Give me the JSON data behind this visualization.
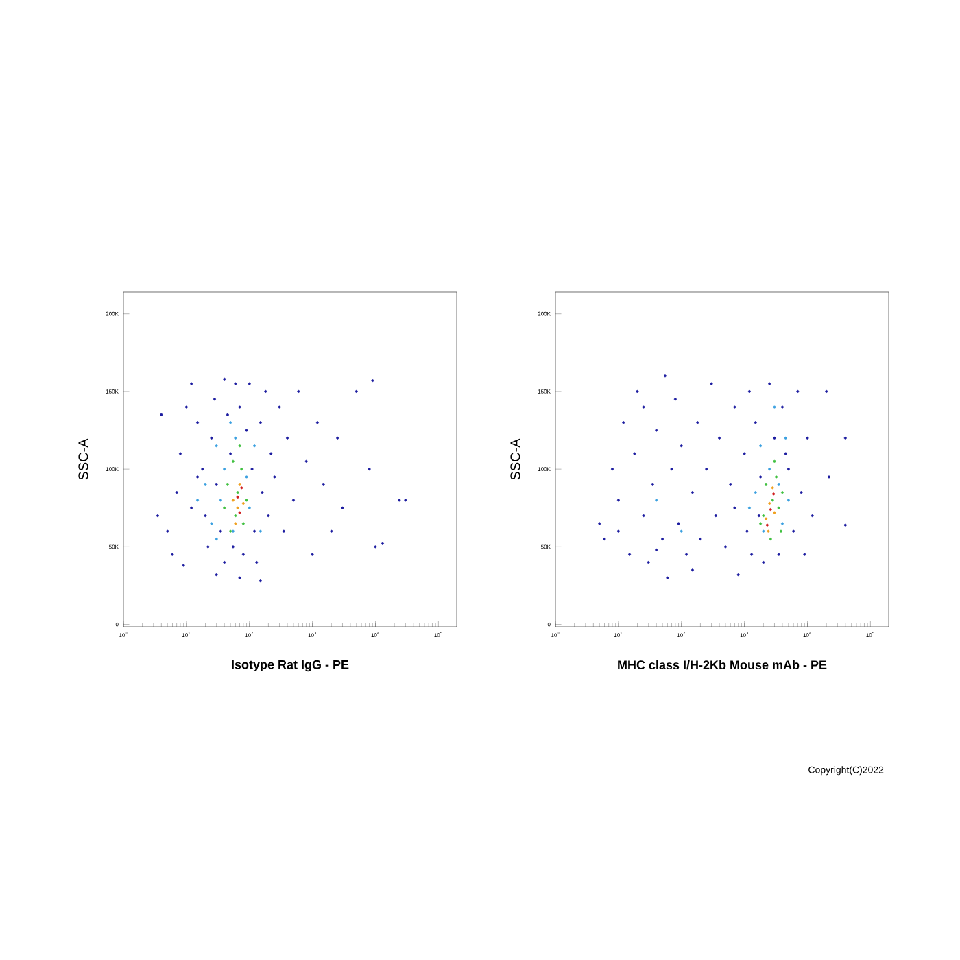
{
  "chart_data": [
    {
      "type": "scatter",
      "xlabel": "Isotype Rat IgG - PE",
      "ylabel": "SSC-A",
      "log": "x",
      "marker": "circle",
      "grid": false,
      "xlim": [
        1,
        195000
      ],
      "ylim": [
        -1500,
        214000
      ],
      "xticks": [
        {
          "value": 1,
          "label": "10$^{0}$"
        },
        {
          "value": 10,
          "label": "10$^{1}$"
        },
        {
          "value": 100,
          "label": "10$^{2}$"
        },
        {
          "value": 1000,
          "label": "10$^{3}$"
        },
        {
          "value": 10000,
          "label": "10$^{4}$"
        },
        {
          "value": 100000,
          "label": "10$^{5}$"
        }
      ],
      "yticks": [
        0,
        {
          "value": 50000,
          "label": "50K"
        },
        {
          "value": 100000,
          "label": "100K"
        },
        {
          "value": 150000,
          "label": "150K"
        },
        {
          "value": 200000,
          "label": "200K"
        }
      ],
      "series": [
        {
          "color": "#1c1ca0",
          "x": [
            5,
            7,
            8,
            10,
            12,
            15,
            18,
            20,
            22,
            25,
            28,
            30,
            35,
            40,
            40,
            45,
            50,
            55,
            60,
            70,
            80,
            90,
            100,
            110,
            120,
            130,
            150,
            160,
            180,
            200,
            220,
            250,
            300,
            350,
            400,
            500,
            600,
            800,
            1000,
            1200,
            1500,
            2000,
            2500,
            3000,
            5000,
            8000,
            10000,
            13000,
            9000,
            24000,
            30000,
            4,
            6,
            9,
            30,
            70,
            150,
            3.5,
            12,
            15
          ],
          "values": [
            60000,
            85000,
            110000,
            140000,
            155000,
            130000,
            100000,
            70000,
            50000,
            120000,
            145000,
            90000,
            60000,
            158000,
            40000,
            135000,
            110000,
            50000,
            155000,
            140000,
            45000,
            125000,
            155000,
            100000,
            60000,
            40000,
            130000,
            85000,
            150000,
            70000,
            110000,
            95000,
            140000,
            60000,
            120000,
            80000,
            150000,
            105000,
            45000,
            130000,
            90000,
            60000,
            120000,
            75000,
            150000,
            100000,
            50000,
            52000,
            157000,
            80000,
            80000,
            135000,
            45000,
            38000,
            32000,
            30000,
            28000,
            70000,
            75000,
            95000
          ]
        },
        {
          "color": "#3aa0e0",
          "x": [
            20,
            25,
            30,
            35,
            40,
            50,
            55,
            60,
            90,
            100,
            120,
            150,
            30,
            15
          ],
          "values": [
            90000,
            65000,
            115000,
            80000,
            100000,
            130000,
            60000,
            120000,
            95000,
            75000,
            115000,
            60000,
            55000,
            80000
          ]
        },
        {
          "color": "#40c040",
          "x": [
            45,
            55,
            60,
            65,
            75,
            80,
            70,
            40,
            90,
            50
          ],
          "values": [
            90000,
            105000,
            70000,
            85000,
            100000,
            65000,
            115000,
            75000,
            80000,
            60000
          ]
        },
        {
          "color": "#f0a020",
          "x": [
            55,
            65,
            70,
            60,
            80
          ],
          "values": [
            80000,
            75000,
            90000,
            65000,
            78000
          ]
        },
        {
          "color": "#d02020",
          "x": [
            65,
            70,
            75
          ],
          "values": [
            82000,
            72000,
            88000
          ]
        }
      ]
    },
    {
      "type": "scatter",
      "xlabel": "MHC class I/H-2Kb Mouse mAb - PE",
      "ylabel": "SSC-A",
      "log": "x",
      "marker": "circle",
      "grid": false,
      "xlim": [
        1,
        195000
      ],
      "ylim": [
        -1500,
        214000
      ],
      "xticks": [
        {
          "value": 1,
          "label": "10$^{0}$"
        },
        {
          "value": 10,
          "label": "10$^{1}$"
        },
        {
          "value": 100,
          "label": "10$^{2}$"
        },
        {
          "value": 1000,
          "label": "10$^{3}$"
        },
        {
          "value": 10000,
          "label": "10$^{4}$"
        },
        {
          "value": 100000,
          "label": "10$^{5}$"
        }
      ],
      "yticks": [
        0,
        {
          "value": 50000,
          "label": "50K"
        },
        {
          "value": 100000,
          "label": "100K"
        },
        {
          "value": 150000,
          "label": "150K"
        },
        {
          "value": 200000,
          "label": "200K"
        }
      ],
      "annotations": [
        "Copyright(C)2022"
      ],
      "series": [
        {
          "color": "#1c1ca0",
          "x": [
            5,
            6,
            8,
            10,
            12,
            15,
            18,
            20,
            25,
            30,
            35,
            40,
            50,
            55,
            60,
            70,
            80,
            90,
            100,
            120,
            150,
            180,
            200,
            250,
            300,
            350,
            400,
            500,
            600,
            700,
            800,
            1000,
            1100,
            1200,
            1300,
            1500,
            1800,
            2000,
            2500,
            3000,
            3500,
            4000,
            5000,
            6000,
            7000,
            8000,
            10000,
            12000,
            9000,
            20000,
            40000,
            40000,
            22000,
            150,
            40,
            25,
            10,
            700,
            1700,
            4500
          ],
          "values": [
            65000,
            55000,
            100000,
            80000,
            130000,
            45000,
            110000,
            150000,
            70000,
            40000,
            90000,
            125000,
            55000,
            160000,
            30000,
            100000,
            145000,
            65000,
            115000,
            45000,
            85000,
            130000,
            55000,
            100000,
            155000,
            70000,
            120000,
            50000,
            90000,
            140000,
            32000,
            110000,
            60000,
            150000,
            45000,
            130000,
            95000,
            40000,
            155000,
            120000,
            45000,
            140000,
            100000,
            60000,
            150000,
            85000,
            120000,
            70000,
            45000,
            150000,
            120000,
            64000,
            95000,
            35000,
            48000,
            140000,
            60000,
            75000,
            70000,
            110000
          ]
        },
        {
          "color": "#3aa0e0",
          "x": [
            1500,
            1800,
            2000,
            2500,
            3000,
            3500,
            4000,
            4500,
            5000,
            1200,
            40,
            100
          ],
          "values": [
            85000,
            115000,
            60000,
            100000,
            140000,
            90000,
            65000,
            120000,
            80000,
            75000,
            80000,
            60000
          ]
        },
        {
          "color": "#40c040",
          "x": [
            2000,
            2200,
            3800,
            2800,
            3000,
            3500,
            3200,
            2600,
            4000,
            1800
          ],
          "values": [
            70000,
            90000,
            60000,
            80000,
            105000,
            75000,
            95000,
            55000,
            85000,
            65000
          ]
        },
        {
          "color": "#f0a020",
          "x": [
            2200,
            2500,
            2800,
            3000,
            2400
          ],
          "values": [
            68000,
            78000,
            88000,
            72000,
            60000
          ]
        },
        {
          "color": "#d02020",
          "x": [
            2600,
            2900,
            2300
          ],
          "values": [
            74000,
            84000,
            64000
          ]
        }
      ]
    }
  ]
}
